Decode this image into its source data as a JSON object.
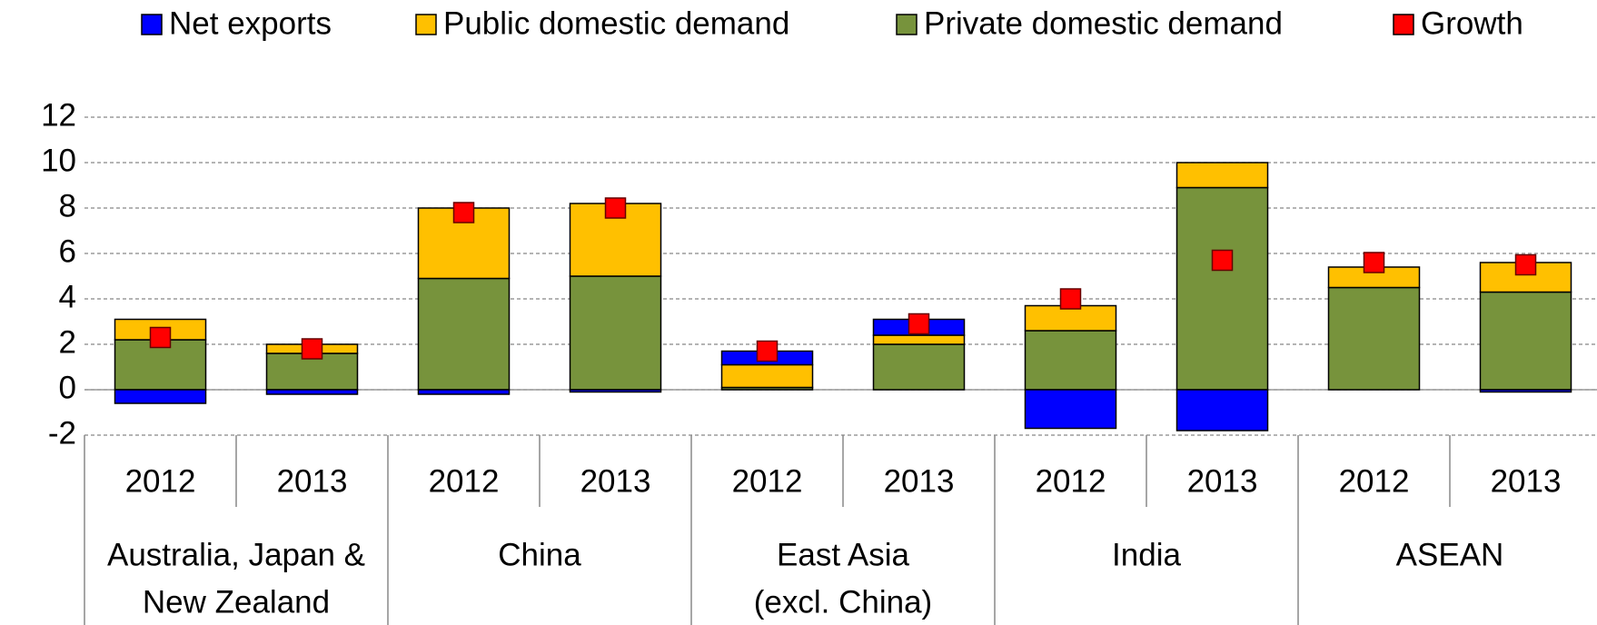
{
  "chart_data": {
    "type": "bar",
    "stacked": true,
    "categories": [
      "2012",
      "2013",
      "2012",
      "2013",
      "2012",
      "2013",
      "2012",
      "2013",
      "2012",
      "2013"
    ],
    "groups": [
      [
        "Australia, Japan &",
        "New Zealand"
      ],
      [
        "China"
      ],
      [
        "East Asia",
        "(excl. China)"
      ],
      [
        "India"
      ],
      [
        "ASEAN"
      ]
    ],
    "series": [
      {
        "name": "Net exports",
        "color": "#0000ff",
        "values": [
          -0.6,
          -0.2,
          -0.2,
          -0.1,
          0.6,
          0.7,
          -1.7,
          -1.8,
          0,
          -0.1
        ]
      },
      {
        "name": "Public domestic demand",
        "color": "#ffc000",
        "values": [
          0.9,
          0.4,
          3.1,
          3.2,
          1.0,
          0.4,
          1.1,
          1.1,
          0.9,
          1.3
        ]
      },
      {
        "name": "Private domestic demand",
        "color": "#77933c",
        "values": [
          2.2,
          1.6,
          4.9,
          5.0,
          0.1,
          2.0,
          2.6,
          8.9,
          4.5,
          4.3
        ]
      },
      {
        "name": "Growth",
        "color": "#ff0000",
        "type": "marker",
        "values": [
          2.3,
          1.8,
          7.8,
          8.0,
          1.7,
          2.9,
          4.0,
          5.7,
          5.6,
          5.5
        ]
      }
    ],
    "ylim": [
      -2,
      12
    ],
    "yticks": [
      -2,
      0,
      2,
      4,
      6,
      8,
      10,
      12
    ],
    "grid": true
  }
}
